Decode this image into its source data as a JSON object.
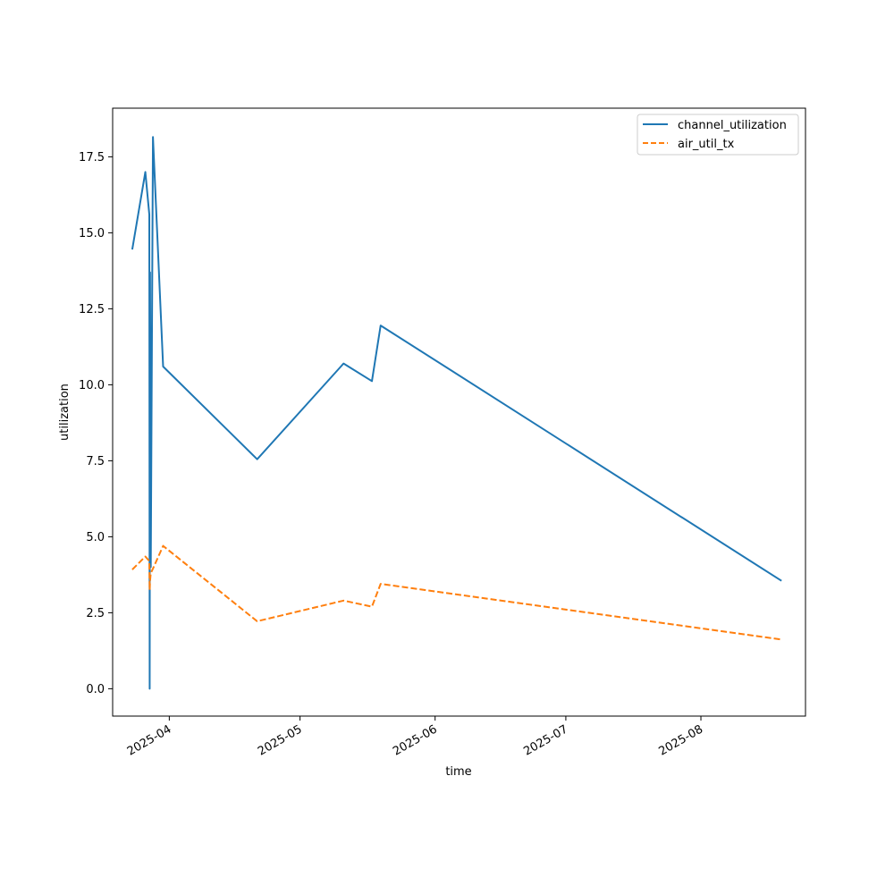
{
  "chart_data": {
    "type": "line",
    "xlabel": "time",
    "ylabel": "utilization",
    "xlim": [
      "2025-03-19",
      "2025-08-25"
    ],
    "ylim": [
      -0.9,
      19.1
    ],
    "x_ticks": [
      "2025-04-01",
      "2025-05-01",
      "2025-06-01",
      "2025-07-01",
      "2025-08-01"
    ],
    "x_tick_labels": [
      "2025-04",
      "2025-05",
      "2025-06",
      "2025-07",
      "2025-08"
    ],
    "y_ticks": [
      0.0,
      2.5,
      5.0,
      7.5,
      10.0,
      12.5,
      15.0,
      17.5
    ],
    "y_tick_labels": [
      "0.0",
      "2.5",
      "5.0",
      "7.5",
      "10.0",
      "12.5",
      "15.0",
      "17.5"
    ],
    "grid": false,
    "legend_position": "upper right",
    "series": [
      {
        "name": "channel_utilization",
        "color": "#1f77b4",
        "style": "solid",
        "x": [
          "2025-03-23 12:00",
          "2025-03-26 12:00",
          "2025-03-27 10:00",
          "2025-03-27 12:00",
          "2025-03-27 14:00",
          "2025-03-27 18:00",
          "2025-03-28 06:00",
          "2025-03-30 14:00",
          "2025-04-21 04:00",
          "2025-05-11 00:00",
          "2025-05-17 12:00",
          "2025-05-19 12:00",
          "2025-08-19 12:00"
        ],
        "y": [
          14.45,
          17.0,
          15.6,
          0.0,
          13.7,
          4.0,
          18.15,
          10.6,
          7.55,
          10.7,
          10.12,
          11.95,
          3.55
        ]
      },
      {
        "name": "air_util_tx",
        "color": "#ff7f0e",
        "style": "dashed",
        "x": [
          "2025-03-23 12:00",
          "2025-03-26 12:00",
          "2025-03-27 10:00",
          "2025-03-27 12:00",
          "2025-03-27 14:00",
          "2025-03-27 18:00",
          "2025-03-28 06:00",
          "2025-03-30 14:00",
          "2025-04-21 04:00",
          "2025-05-11 00:00",
          "2025-05-17 12:00",
          "2025-05-19 12:00",
          "2025-08-19 12:00"
        ],
        "y": [
          3.92,
          4.35,
          4.2,
          3.25,
          3.55,
          3.8,
          3.95,
          4.7,
          2.22,
          2.9,
          2.7,
          3.45,
          1.62
        ]
      }
    ]
  }
}
